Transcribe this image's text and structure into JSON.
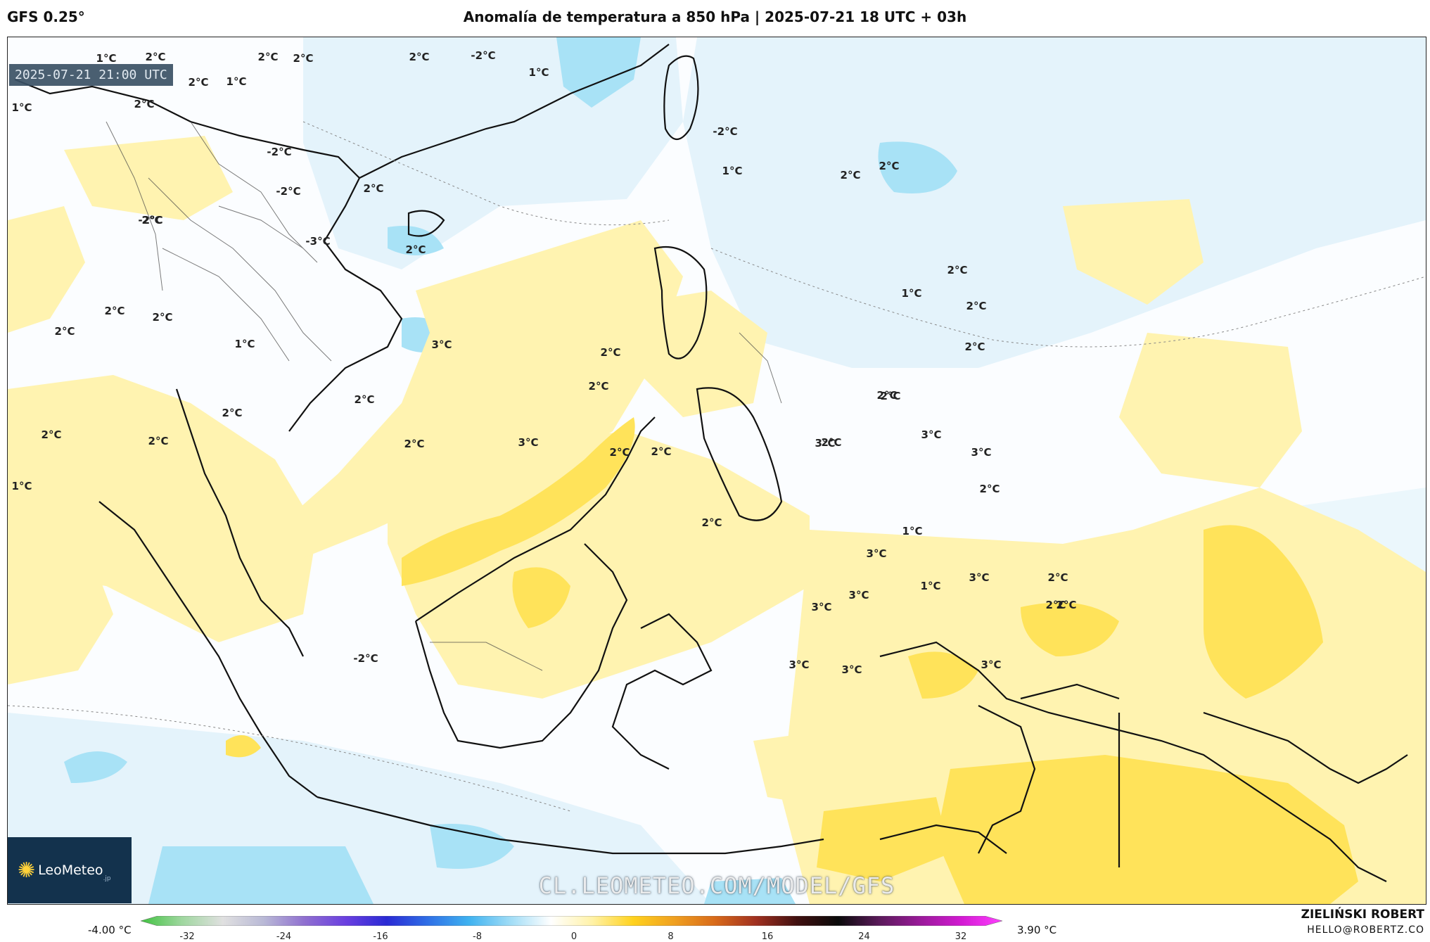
{
  "header": {
    "model": "GFS 0.25°",
    "title": "Anomalía de temperatura a 850 hPa | 2025-07-21 18 UTC + 03h"
  },
  "map": {
    "valid_time": "2025-07-21 21:00 UTC",
    "watermark": "CL.LEOMETEO.COM/MODEL/GFS",
    "logo": "LeoMeteo",
    "logo_suffix": ".jp",
    "labels": [
      {
        "text": "1°C"
      },
      {
        "text": "2°C"
      },
      {
        "text": "2°C"
      },
      {
        "text": "2°C"
      },
      {
        "text": "2°C"
      },
      {
        "text": "-2°C"
      },
      {
        "text": "1°C"
      },
      {
        "text": "1°C"
      },
      {
        "text": "2°C"
      },
      {
        "text": "2°C"
      },
      {
        "text": "1°C"
      },
      {
        "text": "-2°C"
      },
      {
        "text": "-2°C"
      },
      {
        "text": "1°C"
      },
      {
        "text": "-2°C"
      },
      {
        "text": "2°C"
      },
      {
        "text": "2°C"
      },
      {
        "text": "2°C"
      },
      {
        "text": "2°C"
      },
      {
        "text": "-2°C"
      },
      {
        "text": "-3°C"
      },
      {
        "text": "2°C"
      },
      {
        "text": "2°C"
      },
      {
        "text": "2°C"
      },
      {
        "text": "1°C"
      },
      {
        "text": "2°C"
      },
      {
        "text": "2°C"
      },
      {
        "text": "3°C"
      },
      {
        "text": "1°C"
      },
      {
        "text": "2°C"
      },
      {
        "text": "2°C"
      },
      {
        "text": "2°C"
      },
      {
        "text": "2°C"
      },
      {
        "text": "2°C"
      },
      {
        "text": "2°C"
      },
      {
        "text": "3°C"
      },
      {
        "text": "2°C"
      },
      {
        "text": "2°C"
      },
      {
        "text": "2°C"
      },
      {
        "text": "2°C"
      },
      {
        "text": "3°C"
      },
      {
        "text": "3°C"
      },
      {
        "text": "1°C"
      },
      {
        "text": "2°C"
      },
      {
        "text": "2°C"
      },
      {
        "text": "2°C"
      },
      {
        "text": "3°C"
      },
      {
        "text": "2°C"
      },
      {
        "text": "2°C"
      },
      {
        "text": "1°C"
      },
      {
        "text": "1°C"
      },
      {
        "text": "3°C"
      },
      {
        "text": "3°C"
      },
      {
        "text": "3°C"
      },
      {
        "text": "3°C"
      },
      {
        "text": "2°C"
      },
      {
        "text": "2°C"
      },
      {
        "text": "-2°C"
      },
      {
        "text": "3°C"
      },
      {
        "text": "3°C"
      },
      {
        "text": "3°C"
      },
      {
        "text": "2°C"
      },
      {
        "text": "2°C"
      }
    ]
  },
  "colorbar": {
    "min_label": "-4.00 °C",
    "max_label": "3.90 °C",
    "ticks": [
      "-32",
      "-24",
      "-16",
      "-8",
      "0",
      "8",
      "16",
      "24",
      "32"
    ],
    "colors": [
      "#3fc23f",
      "#9fd79f",
      "#e0e0e0",
      "#b9b9d6",
      "#8f6fd0",
      "#6a3fe0",
      "#2a2ad4",
      "#2f6fe6",
      "#3fb2f0",
      "#9fdcf6",
      "#ffffff",
      "#fff2a8",
      "#ffd21e",
      "#f0a020",
      "#d86a1a",
      "#a03020",
      "#401010",
      "#0a0a0a",
      "#5a1a5a",
      "#9a1a9a",
      "#d21ad2",
      "#ff40ff"
    ]
  },
  "footer": {
    "author": "ZIELIŃSKI ROBERT",
    "email": "HELLO@ROBERTZ.CO"
  }
}
